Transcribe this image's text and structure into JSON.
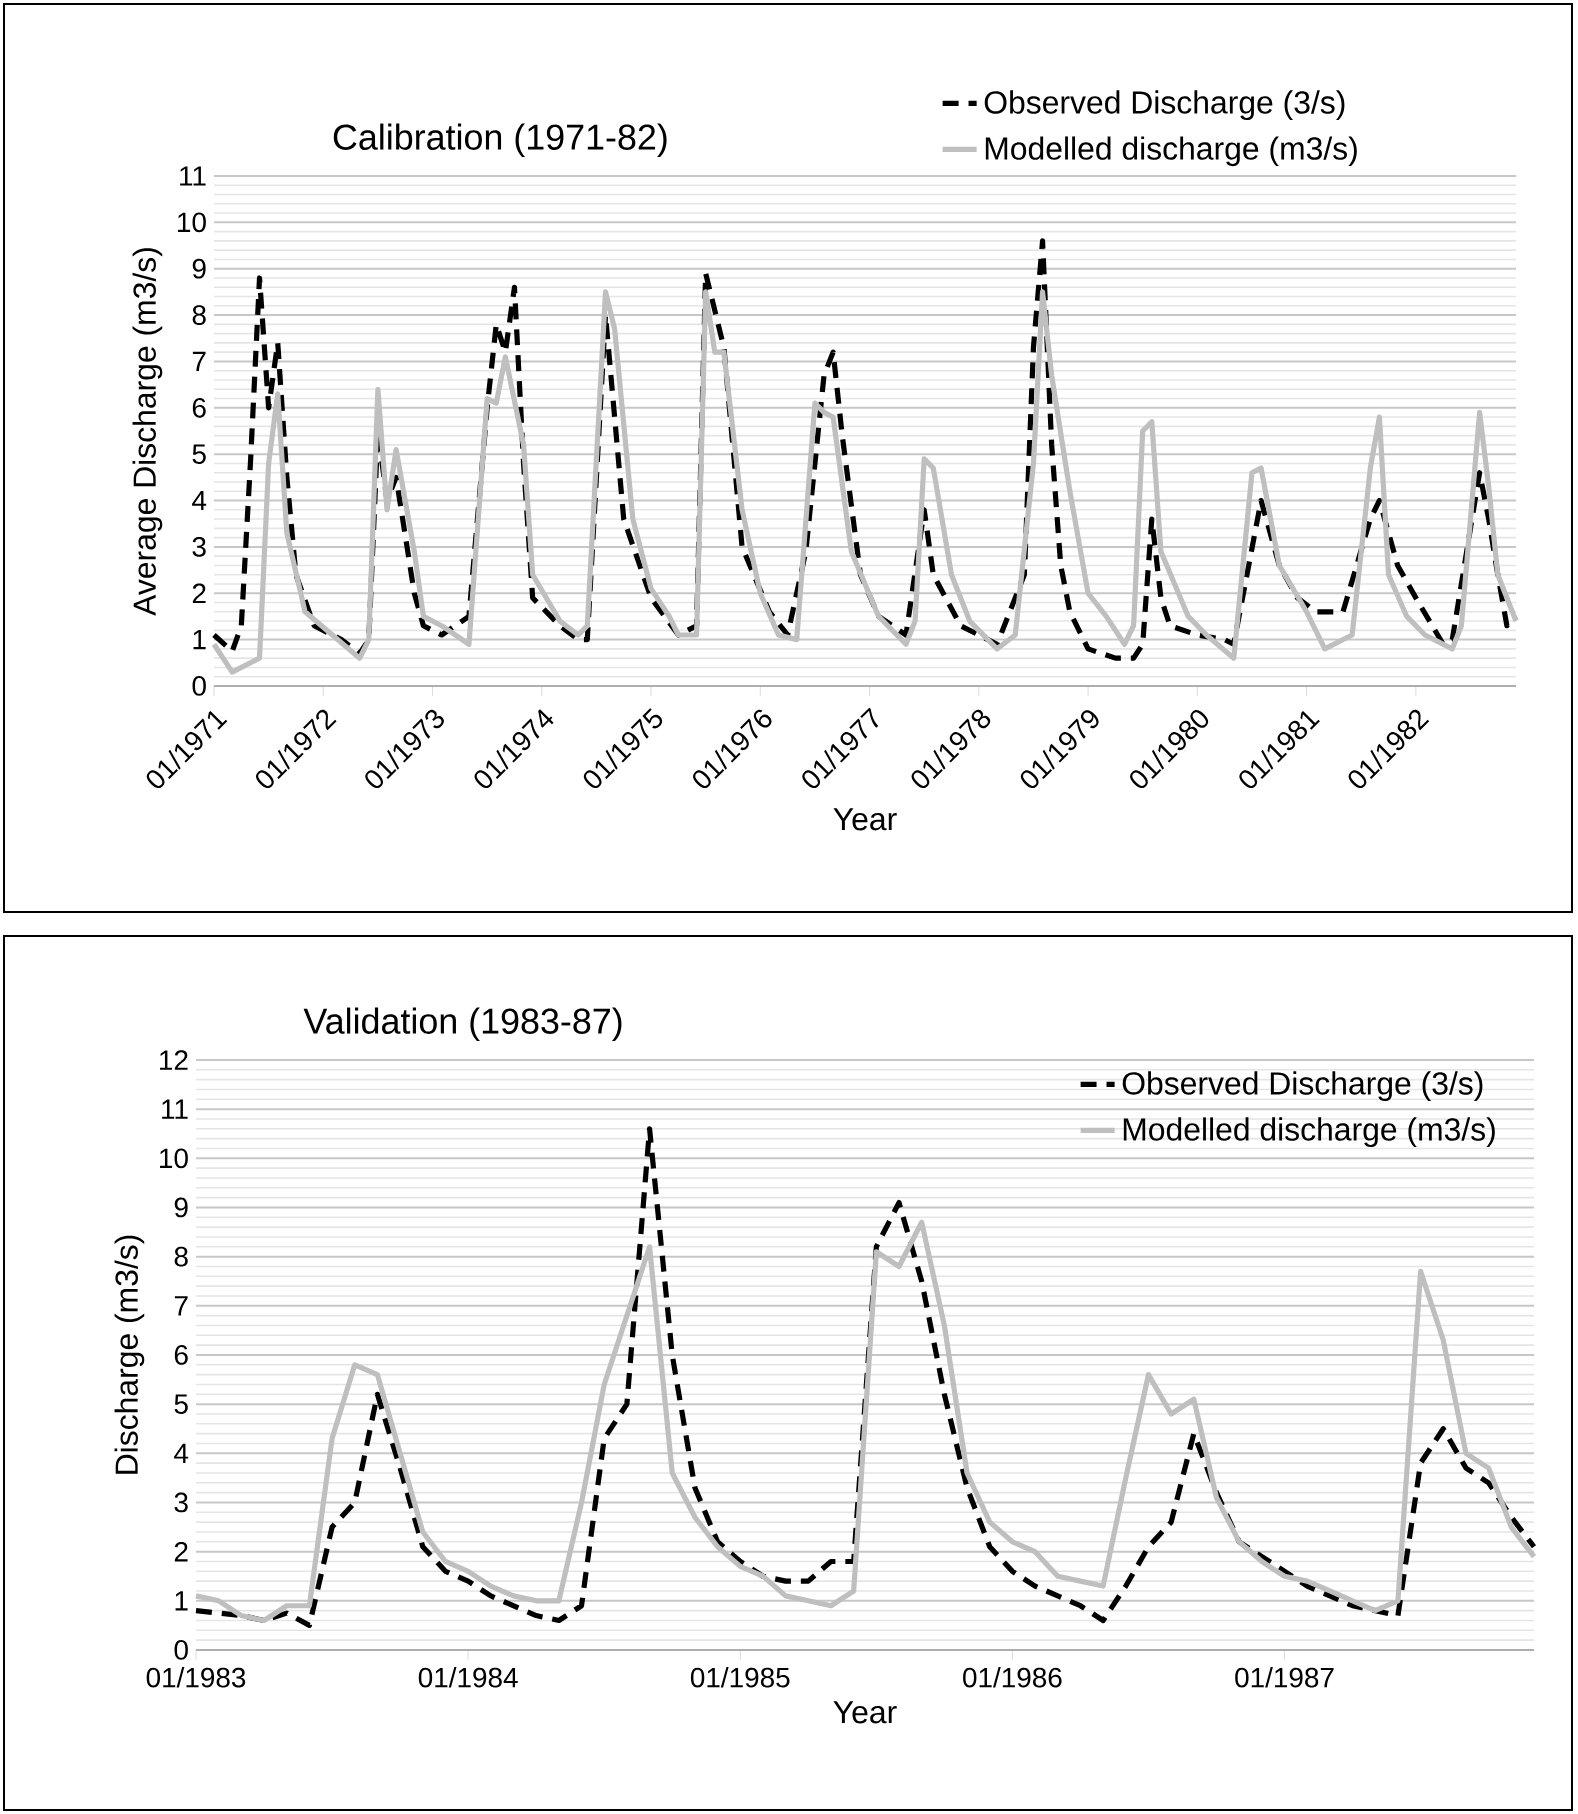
{
  "chart_data": [
    {
      "type": "line",
      "title": "Calibration (1971-82)",
      "xlabel": "Year",
      "ylabel": "Average Discharge (m3/s)",
      "xlim": [
        "1971-01",
        "1982-12"
      ],
      "xticks": [
        {
          "value": "1971-01",
          "label": "01/1971"
        },
        {
          "value": "1972-01",
          "label": "01/1972"
        },
        {
          "value": "1973-01",
          "label": "01/1973"
        },
        {
          "value": "1974-01",
          "label": "01/1974"
        },
        {
          "value": "1975-01",
          "label": "01/1975"
        },
        {
          "value": "1976-01",
          "label": "01/1976"
        },
        {
          "value": "1977-01",
          "label": "01/1977"
        },
        {
          "value": "1978-01",
          "label": "01/1978"
        },
        {
          "value": "1979-01",
          "label": "01/1979"
        },
        {
          "value": "1980-01",
          "label": "01/1980"
        },
        {
          "value": "1981-01",
          "label": "01/1981"
        },
        {
          "value": "1982-01",
          "label": "01/1982"
        }
      ],
      "ylim": [
        0,
        11
      ],
      "yticks": [
        0,
        1,
        2,
        3,
        4,
        5,
        6,
        7,
        8,
        9,
        10,
        11
      ],
      "grid": "y",
      "legend": "top right",
      "series": [
        {
          "name": "Observed Discharge (3/s)",
          "color": "#000000",
          "line_style": "dashed",
          "x": [
            "1971-01",
            "1971-03",
            "1971-04",
            "1971-05",
            "1971-06",
            "1971-07",
            "1971-08",
            "1971-09",
            "1971-10",
            "1971-12",
            "1972-03",
            "1972-05",
            "1972-06",
            "1972-07",
            "1972-08",
            "1972-09",
            "1972-11",
            "1972-12",
            "1973-02",
            "1973-05",
            "1973-07",
            "1973-08",
            "1973-09",
            "1973-10",
            "1973-11",
            "1973-12",
            "1974-03",
            "1974-05",
            "1974-06",
            "1974-08",
            "1974-10",
            "1975-01",
            "1975-04",
            "1975-06",
            "1975-07",
            "1975-09",
            "1975-11",
            "1976-02",
            "1976-04",
            "1976-06",
            "1976-08",
            "1976-09",
            "1976-10",
            "1976-12",
            "1977-02",
            "1977-05",
            "1977-07",
            "1977-08",
            "1977-11",
            "1978-03",
            "1978-06",
            "1978-07",
            "1978-08",
            "1978-09",
            "1978-10",
            "1978-11",
            "1979-01",
            "1979-04",
            "1979-06",
            "1979-07",
            "1979-08",
            "1979-09",
            "1979-10",
            "1980-01",
            "1980-04",
            "1980-05",
            "1980-08",
            "1980-10",
            "1980-12",
            "1981-02",
            "1981-05",
            "1981-08",
            "1981-09",
            "1981-11",
            "1982-01",
            "1982-04",
            "1982-05",
            "1982-08",
            "1982-09",
            "1982-10",
            "1982-11",
            "1982-12"
          ],
          "values": [
            1.1,
            0.75,
            1.3,
            4.8,
            8.8,
            6.0,
            7.4,
            4.5,
            2.4,
            1.3,
            1.0,
            0.7,
            1.0,
            5.5,
            4.0,
            4.5,
            2.0,
            1.3,
            1.1,
            1.5,
            6.0,
            7.8,
            7.2,
            8.6,
            4.8,
            1.9,
            1.3,
            1.0,
            1.0,
            8.0,
            3.6,
            1.9,
            1.1,
            1.3,
            8.9,
            7.3,
            3.0,
            1.6,
            1.1,
            2.9,
            6.7,
            7.2,
            5.4,
            2.4,
            1.5,
            1.1,
            3.8,
            2.4,
            1.3,
            0.9,
            2.4,
            7.3,
            9.6,
            5.2,
            2.6,
            1.6,
            0.8,
            0.6,
            0.6,
            0.9,
            3.6,
            1.9,
            1.3,
            1.1,
            1.0,
            0.9,
            4.0,
            2.6,
            1.9,
            1.6,
            1.6,
            3.6,
            4.0,
            2.6,
            1.9,
            0.9,
            1.0,
            4.6,
            3.6,
            2.4,
            1.3,
            1.5
          ]
        },
        {
          "name": "Modelled discharge (m3/s)",
          "color": "#bfbfbf",
          "line_style": "solid",
          "x": [
            "1971-01",
            "1971-03",
            "1971-06",
            "1971-07",
            "1971-08",
            "1971-09",
            "1971-11",
            "1972-02",
            "1972-05",
            "1972-06",
            "1972-07",
            "1972-08",
            "1972-09",
            "1972-11",
            "1972-12",
            "1973-02",
            "1973-05",
            "1973-07",
            "1973-08",
            "1973-09",
            "1973-11",
            "1973-12",
            "1974-03",
            "1974-05",
            "1974-06",
            "1974-08",
            "1974-09",
            "1974-11",
            "1975-01",
            "1975-03",
            "1975-04",
            "1975-06",
            "1975-07",
            "1975-08",
            "1975-09",
            "1975-11",
            "1976-01",
            "1976-03",
            "1976-05",
            "1976-07",
            "1976-08",
            "1976-09",
            "1976-11",
            "1977-02",
            "1977-05",
            "1977-06",
            "1977-07",
            "1977-08",
            "1977-10",
            "1977-12",
            "1978-03",
            "1978-05",
            "1978-07",
            "1978-08",
            "1978-09",
            "1978-11",
            "1979-01",
            "1979-03",
            "1979-05",
            "1979-06",
            "1979-07",
            "1979-08",
            "1979-09",
            "1979-12",
            "1980-02",
            "1980-05",
            "1980-07",
            "1980-08",
            "1980-10",
            "1981-01",
            "1981-03",
            "1981-06",
            "1981-08",
            "1981-09",
            "1981-10",
            "1981-12",
            "1982-02",
            "1982-05",
            "1982-06",
            "1982-08",
            "1982-09",
            "1982-10",
            "1982-12"
          ],
          "values": [
            0.9,
            0.3,
            0.6,
            4.8,
            6.3,
            3.3,
            1.6,
            1.1,
            0.6,
            1.0,
            6.4,
            3.8,
            5.1,
            2.9,
            1.5,
            1.3,
            0.9,
            6.2,
            6.1,
            7.1,
            5.2,
            2.4,
            1.4,
            1.1,
            1.3,
            8.5,
            7.7,
            3.6,
            2.1,
            1.5,
            1.1,
            1.1,
            8.5,
            7.2,
            7.2,
            3.8,
            2.0,
            1.1,
            1.0,
            6.1,
            5.9,
            5.8,
            2.9,
            1.5,
            0.9,
            1.4,
            4.9,
            4.7,
            2.4,
            1.4,
            0.8,
            1.1,
            4.8,
            8.5,
            6.7,
            4.2,
            2.0,
            1.5,
            0.9,
            1.3,
            5.5,
            5.7,
            2.9,
            1.5,
            1.1,
            0.6,
            4.6,
            4.7,
            2.6,
            1.6,
            0.8,
            1.1,
            4.7,
            5.8,
            2.4,
            1.5,
            1.1,
            0.8,
            1.3,
            5.9,
            4.3,
            2.4,
            1.4
          ]
        }
      ]
    },
    {
      "type": "line",
      "title": "Validation (1983-87)",
      "xlabel": "Year",
      "ylabel": "Discharge (m3/s)",
      "x": [
        "1983-01",
        "1983-02",
        "1983-03",
        "1983-04",
        "1983-05",
        "1983-06",
        "1983-07",
        "1983-08",
        "1983-09",
        "1983-10",
        "1983-11",
        "1983-12",
        "1984-01",
        "1984-02",
        "1984-03",
        "1984-04",
        "1984-05",
        "1984-06",
        "1984-07",
        "1984-08",
        "1984-09",
        "1984-10",
        "1984-11",
        "1984-12",
        "1985-01",
        "1985-02",
        "1985-03",
        "1985-04",
        "1985-05",
        "1985-06",
        "1985-07",
        "1985-08",
        "1985-09",
        "1985-10",
        "1985-11",
        "1985-12",
        "1986-01",
        "1986-02",
        "1986-03",
        "1986-04",
        "1986-05",
        "1986-06",
        "1986-07",
        "1986-08",
        "1986-09",
        "1986-10",
        "1986-11",
        "1986-12",
        "1987-01",
        "1987-02",
        "1987-03",
        "1987-04",
        "1987-05",
        "1987-06",
        "1987-07",
        "1987-08",
        "1987-09",
        "1987-10",
        "1987-11",
        "1987-12"
      ],
      "xlim": [
        "1983-01",
        "1987-12"
      ],
      "xticks": [
        {
          "value": "1983-01",
          "label": "01/1983"
        },
        {
          "value": "1984-01",
          "label": "01/1984"
        },
        {
          "value": "1985-01",
          "label": "01/1985"
        },
        {
          "value": "1986-01",
          "label": "01/1986"
        },
        {
          "value": "1987-01",
          "label": "01/1987"
        }
      ],
      "ylim": [
        0,
        12
      ],
      "yticks": [
        0,
        1,
        2,
        3,
        4,
        5,
        6,
        7,
        8,
        9,
        10,
        11,
        12
      ],
      "grid": "y",
      "legend": "top right",
      "series": [
        {
          "name": "Observed Discharge (3/s)",
          "color": "#000000",
          "line_style": "dashed",
          "values": [
            0.8,
            0.75,
            0.7,
            0.6,
            0.75,
            0.5,
            2.5,
            3.0,
            5.2,
            3.7,
            2.1,
            1.6,
            1.4,
            1.1,
            0.9,
            0.7,
            0.6,
            0.9,
            4.3,
            5.0,
            10.6,
            6.0,
            3.3,
            2.2,
            1.8,
            1.5,
            1.4,
            1.4,
            1.8,
            1.8,
            8.2,
            9.1,
            7.5,
            5.2,
            3.3,
            2.1,
            1.6,
            1.3,
            1.1,
            0.9,
            0.6,
            1.3,
            2.1,
            2.6,
            4.4,
            3.2,
            2.2,
            1.9,
            1.6,
            1.3,
            1.1,
            0.9,
            0.8,
            0.7,
            3.8,
            4.5,
            3.7,
            3.4,
            2.7,
            2.1
          ]
        },
        {
          "name": "Modelled discharge (m3/s)",
          "color": "#bfbfbf",
          "line_style": "solid",
          "values": [
            1.1,
            1.0,
            0.7,
            0.6,
            0.9,
            0.9,
            4.3,
            5.8,
            5.6,
            4.0,
            2.4,
            1.8,
            1.6,
            1.3,
            1.1,
            1.0,
            1.0,
            3.0,
            5.4,
            6.8,
            8.2,
            3.6,
            2.7,
            2.1,
            1.7,
            1.5,
            1.1,
            1.0,
            0.9,
            1.2,
            8.1,
            7.8,
            8.7,
            6.6,
            3.6,
            2.6,
            2.2,
            2.0,
            1.5,
            1.4,
            1.3,
            3.5,
            5.6,
            4.8,
            5.1,
            3.1,
            2.2,
            1.8,
            1.5,
            1.4,
            1.2,
            1.0,
            0.8,
            1.0,
            7.7,
            6.3,
            4.0,
            3.7,
            2.5,
            1.9
          ]
        }
      ]
    }
  ]
}
